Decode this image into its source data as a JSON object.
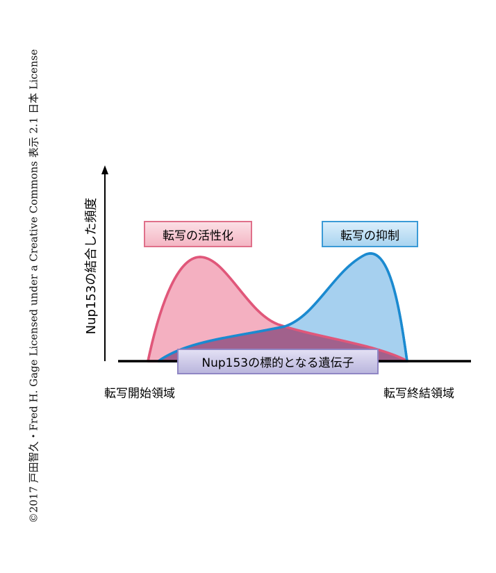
{
  "copyright": "©2017 戸田智久・Fred H. Gage Licensed under a Creative Commons 表示 2.1 日本 License",
  "axis": {
    "y_label": "Nup153の結合した頻度",
    "x_start_label": "転写開始領域",
    "x_end_label": "転写終結領域"
  },
  "labels": {
    "activation": "転写の活性化",
    "repression": "転写の抑制",
    "target_genes": "Nup153の標的となる遺伝子"
  },
  "colors": {
    "activation_fill": "#f2a2b6",
    "activation_stroke": "#e0577a",
    "repression_fill": "#97c8ec",
    "repression_stroke": "#1b8ad0",
    "overlap_fill": "#a0406e"
  }
}
